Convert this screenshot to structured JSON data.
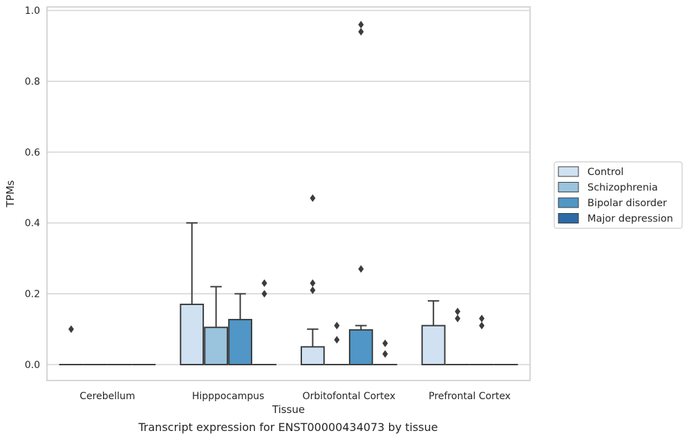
{
  "chart_data": {
    "type": "box",
    "caption": "Transcript expression for ENST00000434073 by tissue",
    "xlabel": "Tissue",
    "ylabel": "TPMs",
    "ylim": [
      -0.045,
      1.01
    ],
    "yticks": [
      "0.0",
      "0.2",
      "0.4",
      "0.6",
      "0.8",
      "1.0"
    ],
    "grid": "horizontal",
    "legend_position": "right",
    "categories": [
      "Cerebellum",
      "Hipppocampus",
      "Orbitofontal Cortex",
      "Prefrontal Cortex"
    ],
    "series": [
      {
        "name": "Control",
        "color": "#d0e1f2",
        "boxes": [
          {
            "q1": 0.0,
            "median": 0.0,
            "q3": 0.0,
            "whisker_low": 0.0,
            "whisker_high": 0.0,
            "outliers": [
              0.1
            ]
          },
          {
            "q1": 0.0,
            "median": 0.0,
            "q3": 0.17,
            "whisker_low": 0.0,
            "whisker_high": 0.4,
            "outliers": []
          },
          {
            "q1": 0.0,
            "median": 0.0,
            "q3": 0.05,
            "whisker_low": 0.0,
            "whisker_high": 0.1,
            "outliers": [
              0.21,
              0.23,
              0.47
            ]
          },
          {
            "q1": 0.0,
            "median": 0.0,
            "q3": 0.11,
            "whisker_low": 0.0,
            "whisker_high": 0.18,
            "outliers": []
          }
        ]
      },
      {
        "name": "Schizophrenia",
        "color": "#9ac3dd",
        "boxes": [
          {
            "q1": 0.0,
            "median": 0.0,
            "q3": 0.0,
            "whisker_low": 0.0,
            "whisker_high": 0.0,
            "outliers": []
          },
          {
            "q1": 0.0,
            "median": 0.0,
            "q3": 0.105,
            "whisker_low": 0.0,
            "whisker_high": 0.22,
            "outliers": []
          },
          {
            "q1": 0.0,
            "median": 0.0,
            "q3": 0.0,
            "whisker_low": 0.0,
            "whisker_high": 0.0,
            "outliers": [
              0.07,
              0.11
            ]
          },
          {
            "q1": 0.0,
            "median": 0.0,
            "q3": 0.0,
            "whisker_low": 0.0,
            "whisker_high": 0.0,
            "outliers": [
              0.13,
              0.15
            ]
          }
        ]
      },
      {
        "name": "Bipolar disorder",
        "color": "#5096c6",
        "boxes": [
          {
            "q1": 0.0,
            "median": 0.0,
            "q3": 0.0,
            "whisker_low": 0.0,
            "whisker_high": 0.0,
            "outliers": []
          },
          {
            "q1": 0.0,
            "median": 0.0,
            "q3": 0.127,
            "whisker_low": 0.0,
            "whisker_high": 0.2,
            "outliers": []
          },
          {
            "q1": 0.0,
            "median": 0.0,
            "q3": 0.098,
            "whisker_low": 0.0,
            "whisker_high": 0.11,
            "outliers": [
              0.27,
              0.94,
              0.96
            ]
          },
          {
            "q1": 0.0,
            "median": 0.0,
            "q3": 0.0,
            "whisker_low": 0.0,
            "whisker_high": 0.0,
            "outliers": [
              0.11,
              0.13
            ]
          }
        ]
      },
      {
        "name": "Major depression",
        "color": "#2d6aa7",
        "boxes": [
          {
            "q1": 0.0,
            "median": 0.0,
            "q3": 0.0,
            "whisker_low": 0.0,
            "whisker_high": 0.0,
            "outliers": []
          },
          {
            "q1": 0.0,
            "median": 0.0,
            "q3": 0.0,
            "whisker_low": 0.0,
            "whisker_high": 0.0,
            "outliers": [
              0.2,
              0.23
            ]
          },
          {
            "q1": 0.0,
            "median": 0.0,
            "q3": 0.0,
            "whisker_low": 0.0,
            "whisker_high": 0.0,
            "outliers": [
              0.03,
              0.06
            ]
          },
          {
            "q1": 0.0,
            "median": 0.0,
            "q3": 0.0,
            "whisker_low": 0.0,
            "whisker_high": 0.0,
            "outliers": []
          }
        ]
      }
    ]
  }
}
